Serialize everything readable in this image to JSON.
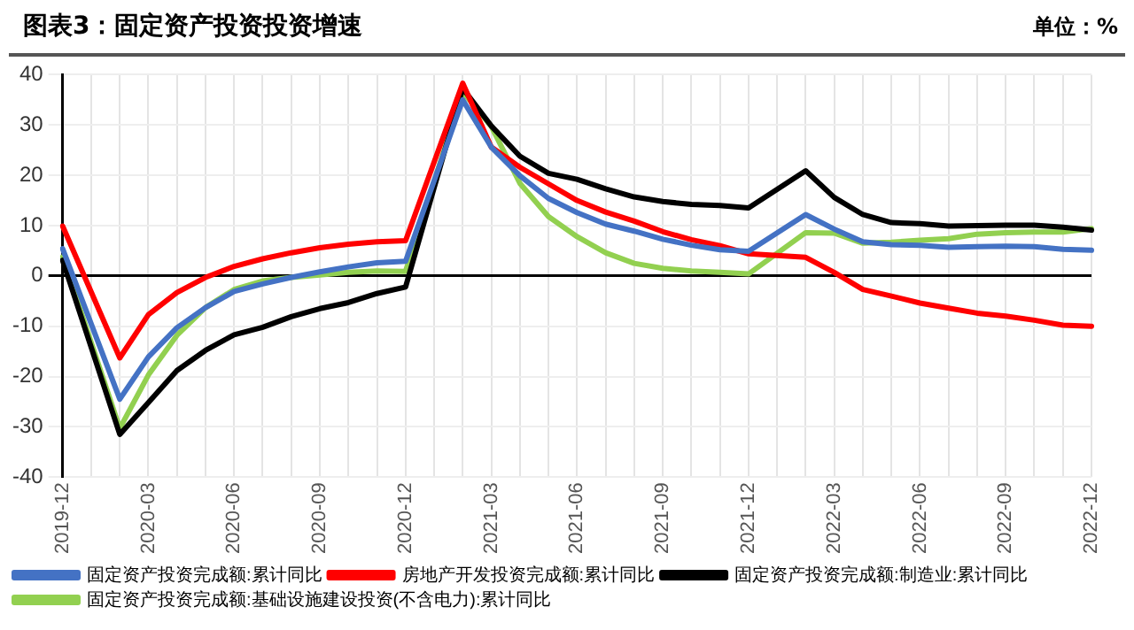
{
  "chart_data": {
    "type": "line",
    "title": "图表3：固定资产投资投资增速",
    "ylabel": "单位：%",
    "categories": [
      "2019-12",
      null,
      null,
      "2020-03",
      null,
      null,
      "2020-06",
      null,
      null,
      "2020-09",
      null,
      null,
      "2020-12",
      null,
      null,
      "2021-03",
      null,
      null,
      "2021-06",
      null,
      null,
      "2021-09",
      null,
      null,
      "2021-12",
      null,
      null,
      "2022-03",
      null,
      null,
      "2022-06",
      null,
      null,
      "2022-09",
      null,
      null,
      "2022-12"
    ],
    "ylim": [
      -40,
      40
    ],
    "yticks": [
      -40,
      -30,
      -20,
      -10,
      0,
      10,
      20,
      30,
      40
    ],
    "grid": true,
    "legend": "bottom",
    "marker": "none",
    "line_style": "solid",
    "series": [
      {
        "name": "固定资产投资完成额:累计同比",
        "color": "#4472c4",
        "values": [
          5.4,
          null,
          -24.5,
          -16.1,
          -10.3,
          -6.3,
          -3.1,
          -1.6,
          -0.3,
          0.8,
          1.8,
          2.6,
          2.9,
          null,
          35.0,
          25.6,
          19.9,
          15.4,
          12.6,
          10.3,
          8.9,
          7.3,
          6.1,
          5.2,
          4.9,
          null,
          12.2,
          9.3,
          6.8,
          6.2,
          6.1,
          5.7,
          5.8,
          5.9,
          5.8,
          5.3,
          5.1
        ]
      },
      {
        "name": "房地产开发投资完成额:累计同比",
        "color": "#ff0000",
        "values": [
          9.9,
          null,
          -16.3,
          -7.7,
          -3.3,
          -0.3,
          1.9,
          3.4,
          4.6,
          5.6,
          6.3,
          6.8,
          7.0,
          null,
          38.3,
          25.6,
          21.6,
          18.3,
          15.0,
          12.7,
          10.9,
          8.8,
          7.2,
          6.0,
          4.4,
          null,
          3.7,
          0.7,
          -2.7,
          -4.0,
          -5.4,
          -6.4,
          -7.4,
          -8.0,
          -8.8,
          -9.8,
          -10.0
        ]
      },
      {
        "name": "固定资产投资完成额:制造业:累计同比",
        "color": "#000000",
        "values": [
          3.1,
          null,
          -31.5,
          -25.2,
          -18.8,
          -14.8,
          -11.7,
          -10.2,
          -8.1,
          -6.5,
          -5.3,
          -3.5,
          -2.2,
          null,
          37.3,
          29.8,
          23.8,
          20.4,
          19.2,
          17.3,
          15.7,
          14.8,
          14.2,
          14.0,
          13.5,
          null,
          20.9,
          15.6,
          12.2,
          10.6,
          10.4,
          9.9,
          10.0,
          10.1,
          10.1,
          9.7,
          9.1
        ]
      },
      {
        "name": "固定资产投资完成额:基础设施建设投资(不含电力):累计同比",
        "color": "#92d050",
        "values": [
          3.8,
          null,
          -30.3,
          -19.7,
          -11.8,
          -6.3,
          -2.7,
          -1.0,
          -0.3,
          0.2,
          0.7,
          1.0,
          0.9,
          null,
          36.6,
          29.7,
          18.4,
          11.8,
          7.8,
          4.6,
          2.5,
          1.5,
          1.0,
          0.7,
          0.4,
          null,
          8.6,
          8.5,
          6.5,
          6.7,
          7.1,
          7.4,
          8.3,
          8.6,
          8.7,
          8.7,
          9.4
        ]
      }
    ]
  }
}
